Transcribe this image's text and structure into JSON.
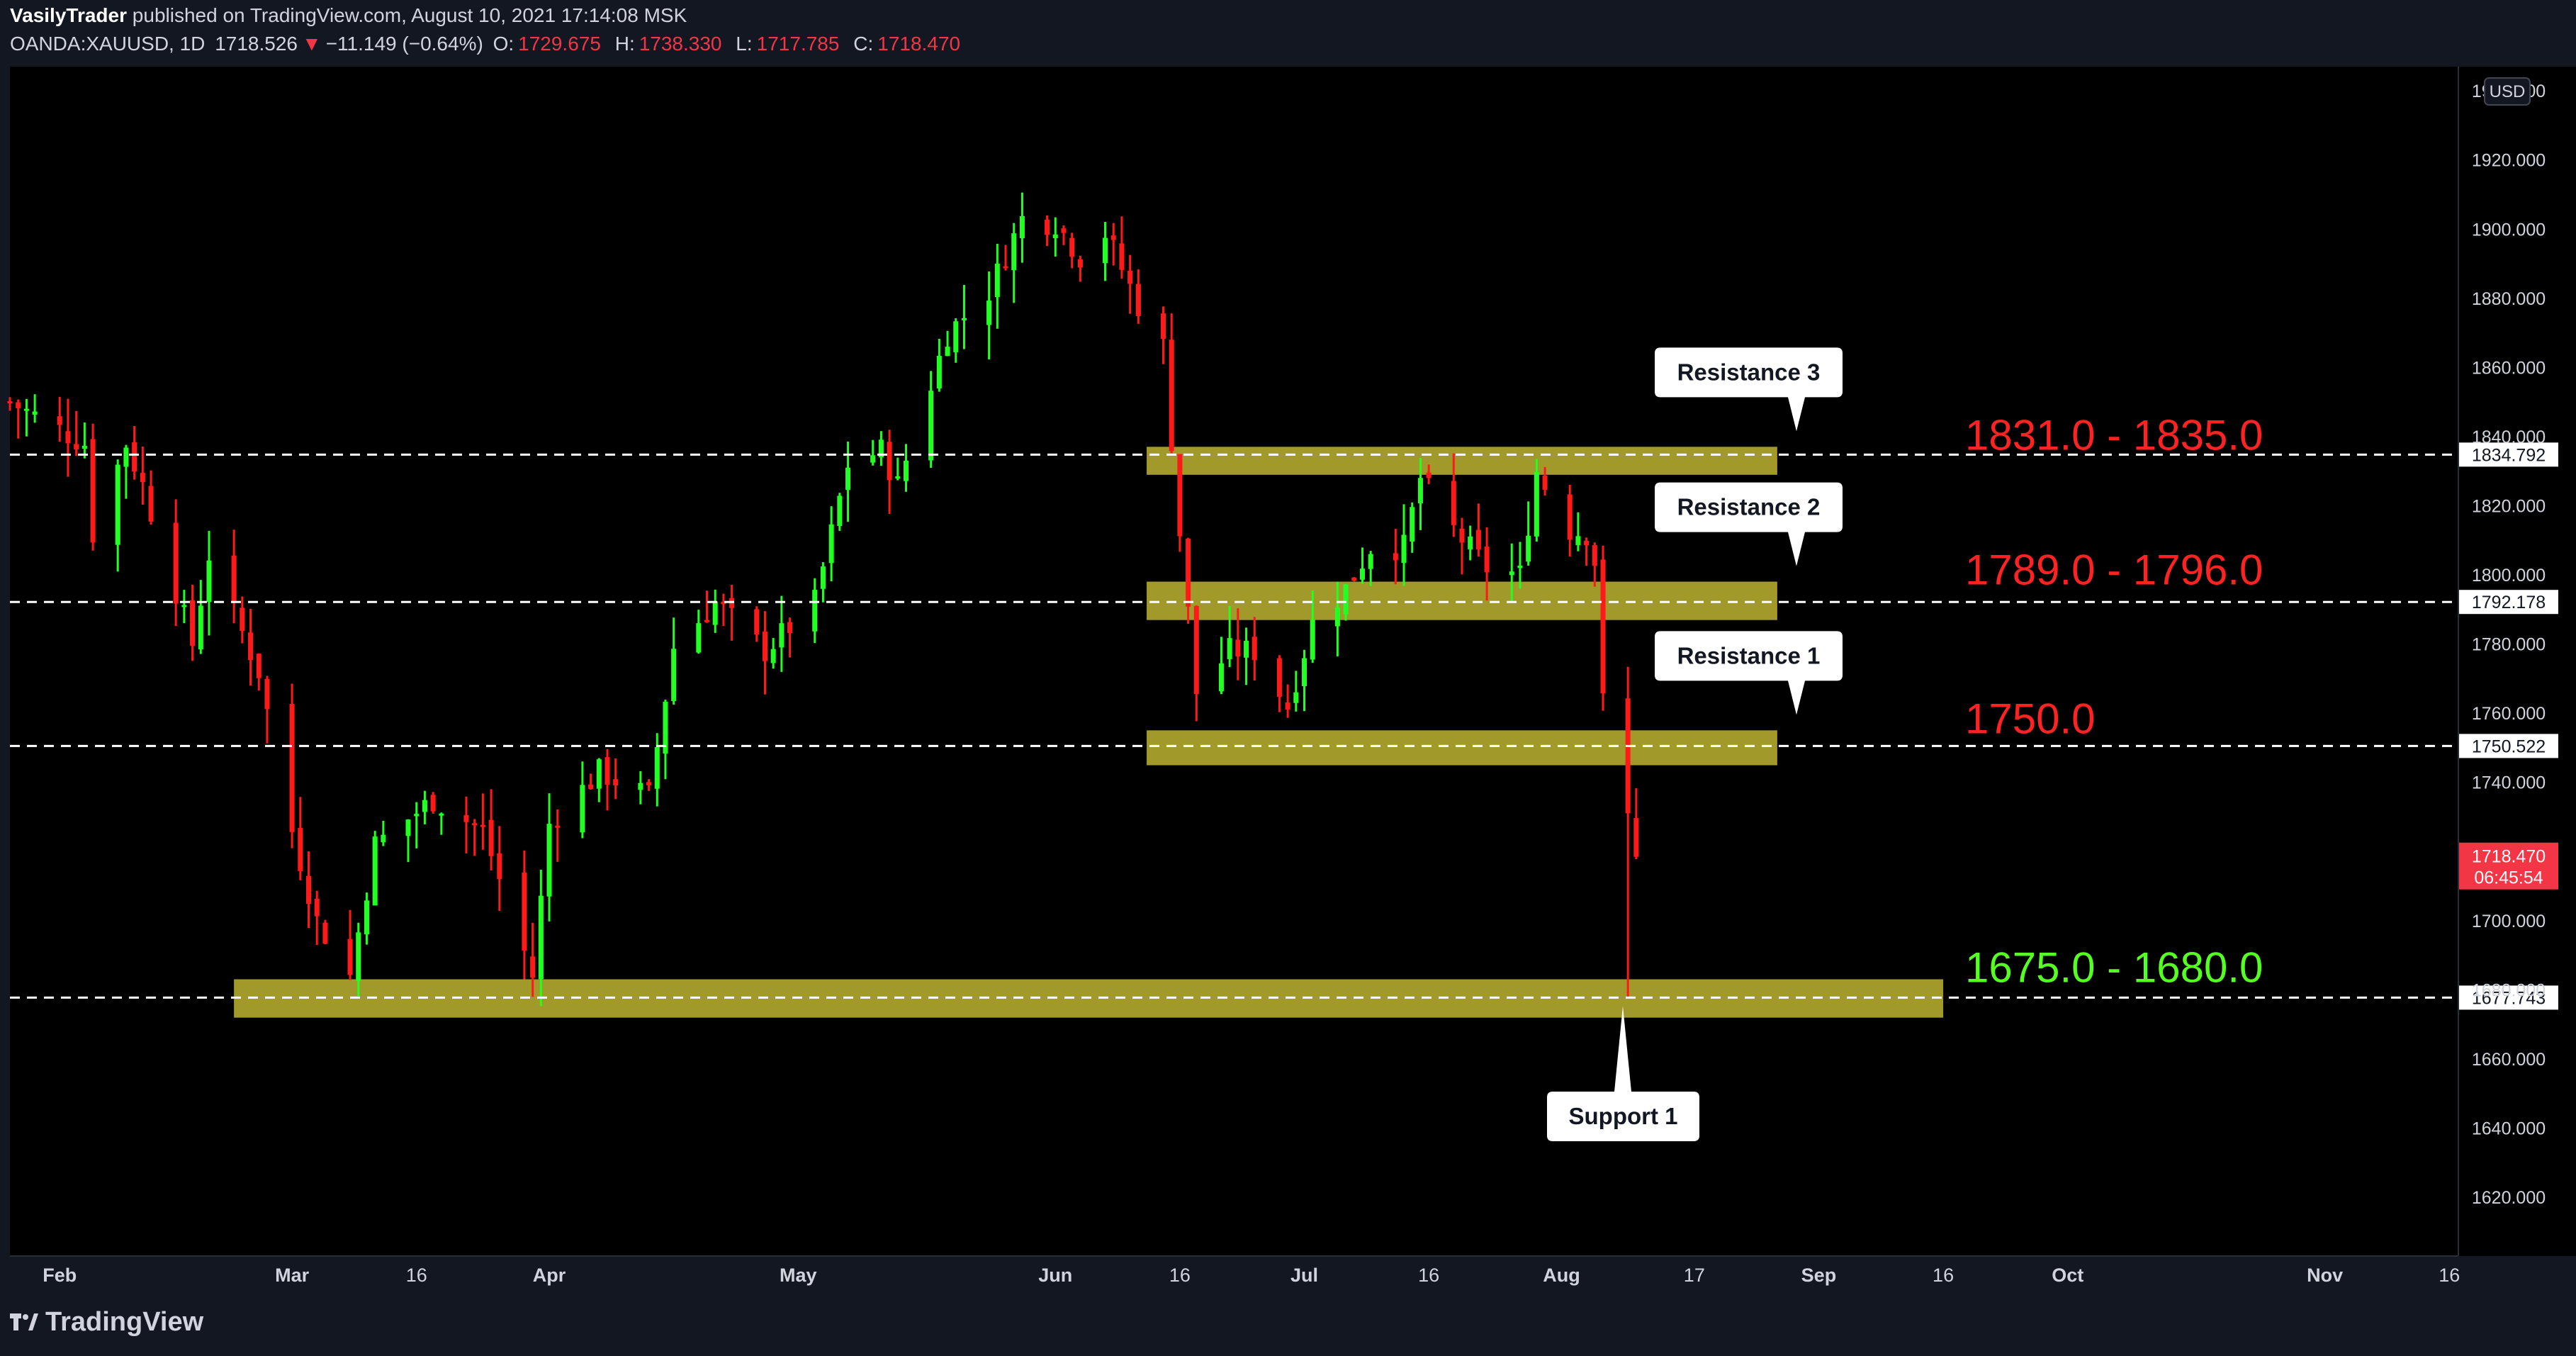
{
  "header": {
    "author": "VasilyTrader",
    "published_text": "published on TradingView.com, August 10, 2021 17:14:08 MSK",
    "symbol": "OANDA:XAUUSD, 1D",
    "last": "1718.526",
    "change_arrow": "▼",
    "change": "−11.149 (−0.64%)",
    "o_label": "O:",
    "o_value": "1729.675",
    "h_label": "H:",
    "h_value": "1738.330",
    "l_label": "L:",
    "l_value": "1717.785",
    "c_label": "C:",
    "c_value": "1718.470"
  },
  "footer": {
    "logo_text": "TradingView"
  },
  "colors": {
    "up": "#22ff22",
    "down": "#ff1a1a",
    "zone": "#a1992a",
    "resistance_text": "#ff2222",
    "support_text": "#55ff22",
    "current_price_bg": "#f23645"
  },
  "chart_data": {
    "type": "candlestick",
    "currency": "USD",
    "y_ticks": [
      1620,
      1640,
      1660,
      1680,
      1700,
      1720,
      1740,
      1760,
      1780,
      1800,
      1820,
      1840,
      1860,
      1880,
      1900,
      1920,
      1940
    ],
    "y_tick_labels": [
      "1620.000",
      "1640.000",
      "1660.000",
      "1680.000",
      "1700.000",
      "1720.000",
      "1740.000",
      "1760.000",
      "1780.000",
      "1800.000",
      "1820.000",
      "1840.000",
      "1860.000",
      "1880.000",
      "1900.000",
      "1920.000",
      "1940.000"
    ],
    "ylim": [
      1603,
      1947
    ],
    "x_range": [
      "2021-01-26",
      "2021-11-17"
    ],
    "x_ticks": [
      {
        "date": "2021-02-01",
        "label": "Feb",
        "major": true
      },
      {
        "date": "2021-03-01",
        "label": "Mar",
        "major": true
      },
      {
        "date": "2021-03-16",
        "label": "16",
        "major": false
      },
      {
        "date": "2021-04-01",
        "label": "Apr",
        "major": true
      },
      {
        "date": "2021-05-01",
        "label": "May",
        "major": true
      },
      {
        "date": "2021-06-01",
        "label": "Jun",
        "major": true
      },
      {
        "date": "2021-06-16",
        "label": "16",
        "major": false
      },
      {
        "date": "2021-07-01",
        "label": "Jul",
        "major": true
      },
      {
        "date": "2021-07-16",
        "label": "16",
        "major": false
      },
      {
        "date": "2021-08-01",
        "label": "Aug",
        "major": true
      },
      {
        "date": "2021-08-17",
        "label": "17",
        "major": false
      },
      {
        "date": "2021-09-01",
        "label": "Sep",
        "major": true
      },
      {
        "date": "2021-09-16",
        "label": "16",
        "major": false
      },
      {
        "date": "2021-10-01",
        "label": "Oct",
        "major": true
      },
      {
        "date": "2021-11-01",
        "label": "Nov",
        "major": true
      },
      {
        "date": "2021-11-16",
        "label": "16",
        "major": false
      }
    ],
    "price_path": [
      [
        "2021-01-26",
        1850
      ],
      [
        "2021-02-04",
        1838
      ],
      [
        "2021-02-05",
        1812
      ],
      [
        "2021-02-09",
        1838
      ],
      [
        "2021-02-11",
        1826
      ],
      [
        "2021-02-17",
        1780
      ],
      [
        "2021-02-19",
        1806
      ],
      [
        "2021-02-25",
        1772
      ],
      [
        "2021-03-01",
        1726
      ],
      [
        "2021-03-04",
        1700
      ],
      [
        "2021-03-08",
        1684
      ],
      [
        "2021-03-11",
        1722
      ],
      [
        "2021-03-18",
        1735
      ],
      [
        "2021-03-24",
        1726
      ],
      [
        "2021-03-30",
        1684
      ],
      [
        "2021-04-01",
        1728
      ],
      [
        "2021-04-07",
        1743
      ],
      [
        "2021-04-13",
        1736
      ],
      [
        "2021-04-16",
        1779
      ],
      [
        "2021-04-21",
        1792
      ],
      [
        "2021-04-27",
        1778
      ],
      [
        "2021-05-03",
        1792
      ],
      [
        "2021-05-07",
        1832
      ],
      [
        "2021-05-11",
        1836
      ],
      [
        "2021-05-13",
        1826
      ],
      [
        "2021-05-19",
        1870
      ],
      [
        "2021-05-24",
        1882
      ],
      [
        "2021-05-28",
        1903
      ],
      [
        "2021-06-01",
        1902
      ],
      [
        "2021-06-04",
        1892
      ],
      [
        "2021-06-07",
        1899
      ],
      [
        "2021-06-11",
        1878
      ],
      [
        "2021-06-14",
        1866
      ],
      [
        "2021-06-16",
        1812
      ],
      [
        "2021-06-18",
        1766
      ],
      [
        "2021-06-22",
        1778
      ],
      [
        "2021-06-25",
        1778
      ],
      [
        "2021-06-29",
        1762
      ],
      [
        "2021-07-02",
        1786
      ],
      [
        "2021-07-06",
        1796
      ],
      [
        "2021-07-09",
        1808
      ],
      [
        "2021-07-13",
        1808
      ],
      [
        "2021-07-15",
        1828
      ],
      [
        "2021-07-19",
        1813
      ],
      [
        "2021-07-23",
        1802
      ],
      [
        "2021-07-27",
        1800
      ],
      [
        "2021-07-29",
        1830
      ],
      [
        "2021-08-02",
        1813
      ],
      [
        "2021-08-04",
        1812
      ],
      [
        "2021-08-05",
        1804
      ],
      [
        "2021-08-06",
        1763
      ],
      [
        "2021-08-09",
        1730
      ],
      [
        "2021-08-10",
        1718.47
      ]
    ],
    "zones": [
      {
        "label": "Resistance 3",
        "range_text": "1831.0 - 1835.0",
        "low": 1831,
        "high": 1835,
        "line": 1834.792,
        "line_label": "1834.792",
        "start": "2021-06-12",
        "end": "2021-08-27",
        "kind": "resistance"
      },
      {
        "label": "Resistance 2",
        "range_text": "1789.0 - 1796.0",
        "low": 1789,
        "high": 1796,
        "line": 1792.178,
        "line_label": "1792.178",
        "start": "2021-06-12",
        "end": "2021-08-27",
        "kind": "resistance"
      },
      {
        "label": "Resistance 1",
        "range_text": "1750.0",
        "low": 1747,
        "high": 1753,
        "line": 1750.522,
        "line_label": "1750.522",
        "start": "2021-06-12",
        "end": "2021-08-27",
        "kind": "resistance"
      },
      {
        "label": "Support 1",
        "range_text": "1675.0 - 1680.0",
        "low": 1674,
        "high": 1681,
        "line": 1677.743,
        "line_label": "1677.743",
        "start": "2021-02-22",
        "end": "2021-09-16",
        "kind": "support"
      }
    ],
    "current_price": {
      "value": 1718.47,
      "label": "1718.470",
      "countdown": "06:45:54"
    }
  }
}
